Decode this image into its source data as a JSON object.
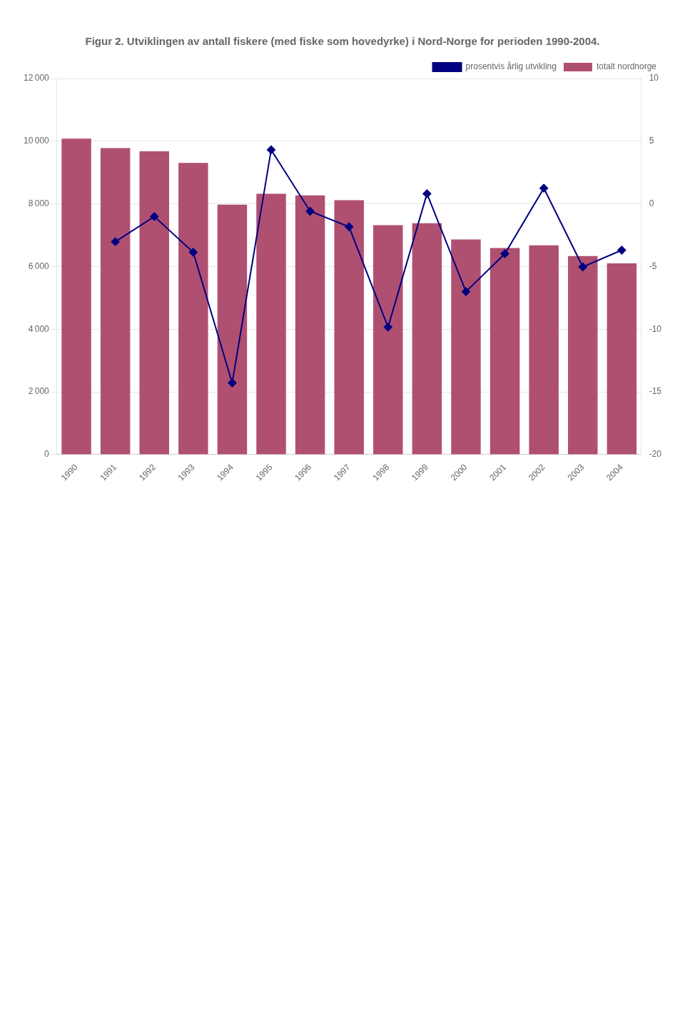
{
  "chart_data": {
    "type": "bar",
    "title": "Figur 2. Utviklingen av antall fiskere (med fiske som hovedyrke) i Nord-Norge for perioden 1990-2004.",
    "categories": [
      "1990",
      "1991",
      "1992",
      "1993",
      "1994",
      "1995",
      "1996",
      "1997",
      "1998",
      "1999",
      "2000",
      "2001",
      "2002",
      "2003",
      "2004"
    ],
    "series": [
      {
        "name": "totalt nordnorge",
        "type": "bar",
        "color": "#b05070",
        "values": [
          10082,
          9778,
          9679,
          9305,
          7976,
          8320,
          8271,
          8120,
          7322,
          7381,
          6865,
          6592,
          6674,
          6338,
          6104
        ]
      },
      {
        "name": "prosentvis årlig\nutvikling",
        "type": "line",
        "axis": "y2",
        "color": "#000080",
        "marker": "diamond",
        "values": [
          null,
          -3.02,
          -1.01,
          -3.86,
          -14.28,
          4.31,
          -0.59,
          -1.83,
          -9.83,
          0.81,
          -7.0,
          -3.98,
          1.25,
          -5.03,
          -3.69
        ]
      }
    ],
    "ylim": [
      0,
      12000
    ],
    "yticks": [
      0,
      {
        "value": 2000,
        "label": "2 000"
      },
      {
        "value": 4000,
        "label": "4 000"
      },
      {
        "value": 6000,
        "label": "6 000"
      },
      {
        "value": 8000,
        "label": "8 000"
      },
      {
        "value": 10000,
        "label": "10 000"
      },
      {
        "value": 12000,
        "label": "12 000"
      }
    ],
    "y2lim": [
      -20,
      10
    ],
    "y2ticks": [
      -20,
      -15,
      -10,
      -5,
      0,
      5,
      10
    ],
    "grid": "y",
    "legend": "upper right"
  }
}
